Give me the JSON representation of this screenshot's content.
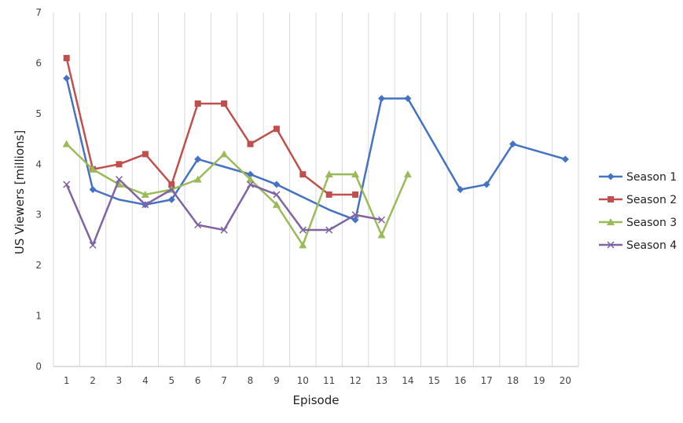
{
  "chart_data": {
    "type": "line",
    "title": "",
    "xlabel": "Episode",
    "ylabel": "US Viewers [millions]",
    "ylim": [
      0,
      7
    ],
    "yticks": [
      0,
      1,
      2,
      3,
      4,
      5,
      6,
      7
    ],
    "categories": [
      "1",
      "2",
      "3",
      "4",
      "5",
      "6",
      "7",
      "8",
      "9",
      "10",
      "11",
      "12",
      "13",
      "14",
      "15",
      "16",
      "17",
      "18",
      "19",
      "20"
    ],
    "grid": "vertical",
    "legend_position": "right",
    "series": [
      {
        "name": "Season 1",
        "color": "#4472C4",
        "marker": "diamond",
        "values": [
          5.7,
          3.5,
          3.3,
          3.2,
          3.3,
          4.1,
          3.95,
          3.8,
          3.6,
          3.35,
          3.1,
          2.9,
          5.3,
          5.3,
          4.4,
          3.5,
          3.6,
          4.4,
          4.25,
          4.1
        ],
        "marked": [
          1,
          1,
          0,
          1,
          1,
          1,
          0,
          1,
          1,
          0,
          0,
          1,
          1,
          1,
          0,
          1,
          1,
          1,
          0,
          1
        ]
      },
      {
        "name": "Season 2",
        "color": "#C0504D",
        "marker": "square",
        "values": [
          6.1,
          3.9,
          4.0,
          4.2,
          3.6,
          5.2,
          5.2,
          4.4,
          4.7,
          3.8,
          3.4,
          3.4,
          null,
          null,
          null,
          null,
          null,
          null,
          null,
          null
        ],
        "marked": [
          1,
          1,
          1,
          1,
          1,
          1,
          1,
          1,
          1,
          1,
          1,
          1,
          0,
          0,
          0,
          0,
          0,
          0,
          0,
          0
        ]
      },
      {
        "name": "Season 3",
        "color": "#9BBB59",
        "marker": "triangle",
        "values": [
          4.4,
          3.9,
          3.6,
          3.4,
          3.5,
          3.7,
          4.2,
          3.7,
          3.2,
          2.4,
          3.8,
          3.8,
          2.6,
          3.8,
          null,
          null,
          null,
          null,
          null,
          null
        ],
        "marked": [
          1,
          1,
          1,
          1,
          1,
          1,
          1,
          1,
          1,
          1,
          1,
          1,
          1,
          1,
          0,
          0,
          0,
          0,
          0,
          0
        ]
      },
      {
        "name": "Season 4",
        "color": "#8064A2",
        "marker": "x",
        "values": [
          3.6,
          2.4,
          3.7,
          3.2,
          3.5,
          2.8,
          2.7,
          3.6,
          3.4,
          2.7,
          2.7,
          3.0,
          2.9,
          null,
          null,
          null,
          null,
          null,
          null,
          null
        ],
        "marked": [
          1,
          1,
          1,
          1,
          1,
          1,
          1,
          1,
          1,
          1,
          1,
          1,
          1,
          0,
          0,
          0,
          0,
          0,
          0,
          0
        ]
      }
    ]
  }
}
